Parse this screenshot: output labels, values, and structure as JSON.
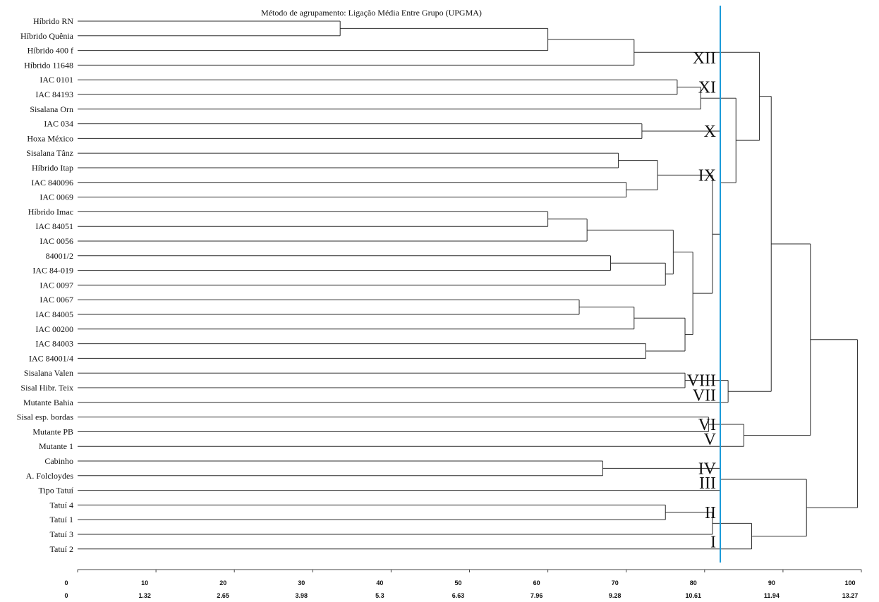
{
  "title": "Método de agrupamento: Ligação Média Entre Grupo (UPGMA)",
  "chart_data": {
    "type": "dendrogram",
    "title": "Método de agrupamento: Ligação Média Entre Grupo (UPGMA)",
    "xlim": [
      0,
      100
    ],
    "x_ticks_primary": [
      "0",
      "10",
      "20",
      "30",
      "40",
      "50",
      "60",
      "70",
      "80",
      "90",
      "100"
    ],
    "x_ticks_secondary": [
      "0",
      "1.32",
      "2.65",
      "3.98",
      "5.3",
      "6.63",
      "7.96",
      "9.28",
      "10.61",
      "11.94",
      "13.27"
    ],
    "cut_value": 82,
    "leaves": [
      "Híbrido RN",
      "Híbrido Quênia",
      "Híbrido 400 f",
      "Híbrido 11648",
      "IAC 0101",
      "IAC 84193",
      "Sisalana Orn",
      "IAC 034",
      "Hoxa México",
      "Sisalana Tânz",
      "Híbrido Itap",
      "IAC 840096",
      "IAC 0069",
      "Híbrido Imac",
      "IAC 84051",
      "IAC 0056",
      "84001/2",
      "IAC 84-019",
      "IAC 0097",
      "IAC 0067",
      "IAC 84005",
      "IAC 00200",
      "IAC 84003",
      "IAC 84001/4",
      "Sisalana Valen",
      "Sisal Hibr. Teix",
      "Mutante Bahia",
      "Sisal esp. bordas",
      "Mutante PB",
      "Mutante 1",
      "Cabinho",
      "A. Folcloydes",
      "Tipo Tatuí",
      "Tatuí 4",
      "Tatuí 1",
      "Tatuí 3",
      "Tatuí 2"
    ],
    "merges": [
      {
        "a": "Híbrido RN",
        "b": "Híbrido Quênia",
        "height": 33.5
      },
      {
        "a": "m0",
        "b": "Híbrido 400 f",
        "height": 60.0
      },
      {
        "a": "m1",
        "b": "Híbrido 11648",
        "height": 71.0
      },
      {
        "a": "IAC 0101",
        "b": "IAC 84193",
        "height": 76.5
      },
      {
        "a": "m3",
        "b": "Sisalana Orn",
        "height": 79.5
      },
      {
        "a": "IAC 034",
        "b": "Hoxa México",
        "height": 72.0
      },
      {
        "a": "Sisalana Tânz",
        "b": "Híbrido Itap",
        "height": 69.0
      },
      {
        "a": "IAC 840096",
        "b": "IAC 0069",
        "height": 70.0
      },
      {
        "a": "m6",
        "b": "m7",
        "height": 74.0
      },
      {
        "a": "Híbrido Imac",
        "b": "IAC 84051",
        "height": 60.0
      },
      {
        "a": "m9",
        "b": "IAC 0056",
        "height": 65.0
      },
      {
        "a": "84001/2",
        "b": "IAC 84-019",
        "height": 68.0
      },
      {
        "a": "m11",
        "b": "IAC 0097",
        "height": 75.0
      },
      {
        "a": "m10",
        "b": "m12",
        "height": 76.0
      },
      {
        "a": "IAC 0067",
        "b": "IAC 84005",
        "height": 64.0
      },
      {
        "a": "m14",
        "b": "IAC 00200",
        "height": 71.0
      },
      {
        "a": "IAC 84003",
        "b": "IAC 84001/4",
        "height": 72.5
      },
      {
        "a": "m15",
        "b": "m16",
        "height": 77.5
      },
      {
        "a": "m13",
        "b": "m17",
        "height": 78.5
      },
      {
        "a": "m8",
        "b": "m18",
        "height": 81.0
      },
      {
        "a": "m5",
        "b": "m19",
        "height": 82.0
      },
      {
        "a": "m4",
        "b": "m20",
        "height": 84.0
      },
      {
        "a": "m2",
        "b": "m21",
        "height": 87.0
      },
      {
        "a": "Sisalana Valen",
        "b": "Sisal Hibr. Teix",
        "height": 77.5
      },
      {
        "a": "m23",
        "b": "Mutante Bahia",
        "height": 83.0
      },
      {
        "a": "m22",
        "b": "m24",
        "height": 88.5
      },
      {
        "a": "Sisal esp. bordas",
        "b": "Mutante PB",
        "height": 80.5
      },
      {
        "a": "m26",
        "b": "Mutante 1",
        "height": 85.0
      },
      {
        "a": "m25",
        "b": "m27",
        "height": 93.5
      },
      {
        "a": "Cabinho",
        "b": "A. Folcloydes",
        "height": 67.0
      },
      {
        "a": "m29",
        "b": "Tipo Tatuí",
        "height": 82.0
      },
      {
        "a": "Tatuí 4",
        "b": "Tatuí 1",
        "height": 75.0
      },
      {
        "a": "m31",
        "b": "Tatuí 3",
        "height": 81.0
      },
      {
        "a": "m32",
        "b": "Tatuí 2",
        "height": 86.0
      },
      {
        "a": "m30",
        "b": "m33",
        "height": 93.0
      },
      {
        "a": "m28",
        "b": "m34",
        "height": 99.5
      }
    ],
    "group_labels": [
      {
        "text": "XII",
        "after_leaf": "Híbrido 400 f"
      },
      {
        "text": "XI",
        "after_leaf": "IAC 0101"
      },
      {
        "text": "X",
        "after_leaf": "IAC 034"
      },
      {
        "text": "IX",
        "after_leaf": "Híbrido Itap"
      },
      {
        "text": "VIII",
        "after_leaf": "Sisalana Valen"
      },
      {
        "text": "VII",
        "after_leaf": "Sisal Hibr. Teix"
      },
      {
        "text": "VI",
        "after_leaf": "Sisal esp. bordas"
      },
      {
        "text": "V",
        "after_leaf": "Mutante PB"
      },
      {
        "text": "IV",
        "after_leaf": "Cabinho"
      },
      {
        "text": "III",
        "after_leaf": "A. Folcloydes"
      },
      {
        "text": "II",
        "after_leaf": "Tatuí 4"
      },
      {
        "text": "I",
        "after_leaf": "Tatuí 3"
      }
    ],
    "grid": false,
    "legend": "none"
  }
}
